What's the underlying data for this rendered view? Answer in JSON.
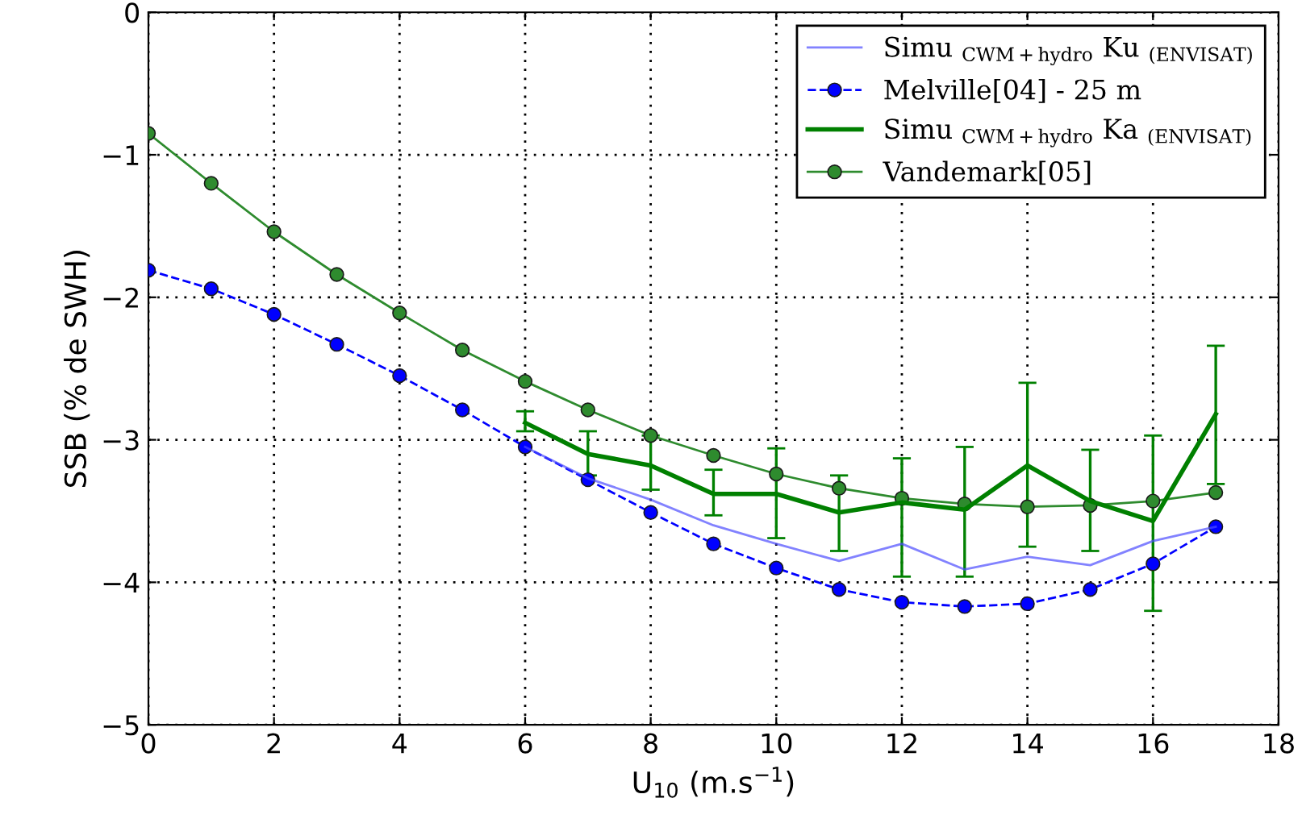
{
  "chart_data": {
    "type": "line",
    "xlabel": "U$_{10}$ (m.s$^{−1}$)",
    "ylabel": "SSB (% de SWH)",
    "xlim": [
      0,
      18
    ],
    "xticks": [
      0,
      2,
      4,
      6,
      8,
      10,
      12,
      14,
      16,
      18
    ],
    "ylim": [
      -5,
      0
    ],
    "yticks": [
      -5,
      -4,
      -3,
      -2,
      -1,
      0
    ],
    "grid": true,
    "legend": "top right",
    "series": [
      {
        "name": "Simu $_{CWM+hydro}$ Ku $_{(ENVISAT)}$",
        "color": "#4d4dff",
        "marker": "none",
        "line_style": "solid",
        "x": [
          6,
          7,
          8,
          9,
          10,
          11,
          12,
          13,
          14,
          15,
          16,
          17
        ],
        "values": [
          -3.05,
          -3.27,
          -3.42,
          -3.6,
          -3.73,
          -3.85,
          -3.73,
          -3.91,
          -3.82,
          -3.88,
          -3.71,
          -3.61
        ]
      },
      {
        "name": "Melville[04] - 25 m",
        "color": "#0000ff",
        "marker": "circle",
        "line_style": "dashed",
        "x": [
          0,
          1,
          2,
          3,
          4,
          5,
          6,
          7,
          8,
          9,
          10,
          11,
          12,
          13,
          14,
          15,
          16,
          17
        ],
        "values": [
          -1.81,
          -1.94,
          -2.12,
          -2.33,
          -2.55,
          -2.79,
          -3.05,
          -3.28,
          -3.51,
          -3.73,
          -3.9,
          -4.05,
          -4.14,
          -4.17,
          -4.15,
          -4.05,
          -3.87,
          -3.61
        ]
      },
      {
        "name": "Simu $_{CWM+hydro}$ Ka $_{(ENVISAT)}$",
        "color": "#008000",
        "marker": "none",
        "line_style": "solid",
        "x": [
          6,
          7,
          8,
          9,
          10,
          11,
          12,
          13,
          14,
          15,
          16,
          17
        ],
        "values": [
          -2.88,
          -3.1,
          -3.18,
          -3.38,
          -3.38,
          -3.51,
          -3.44,
          -3.49,
          -3.18,
          -3.43,
          -3.57,
          -2.82
        ],
        "errors": [
          [
            -2.94,
            -2.8
          ],
          [
            -3.25,
            -2.94
          ],
          [
            -3.35,
            -2.97
          ],
          [
            -3.53,
            -3.21
          ],
          [
            -3.69,
            -3.06
          ],
          [
            -3.78,
            -3.25
          ],
          [
            -3.96,
            -3.13
          ],
          [
            -3.96,
            -3.05
          ],
          [
            -3.75,
            -2.6
          ],
          [
            -3.78,
            -3.07
          ],
          [
            -4.2,
            -2.97
          ],
          [
            -3.31,
            -2.34
          ]
        ]
      },
      {
        "name": "Vandemark[05]",
        "color": "#2e8b2e",
        "marker": "circle",
        "line_style": "solid",
        "x": [
          0,
          1,
          2,
          3,
          4,
          5,
          6,
          7,
          8,
          9,
          10,
          11,
          12,
          13,
          14,
          15,
          16,
          17
        ],
        "values": [
          -0.85,
          -1.2,
          -1.54,
          -1.84,
          -2.11,
          -2.37,
          -2.59,
          -2.79,
          -2.97,
          -3.11,
          -3.24,
          -3.34,
          -3.41,
          -3.45,
          -3.47,
          -3.46,
          -3.43,
          -3.37
        ]
      }
    ]
  }
}
